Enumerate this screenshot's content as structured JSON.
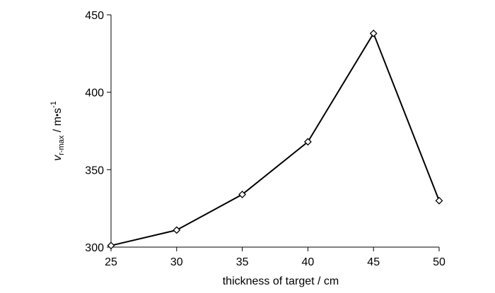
{
  "chart_data": {
    "type": "line",
    "title": "",
    "xlabel": "thickness of target / cm",
    "ylabel": {
      "symbol": "v",
      "subscript": "r-max",
      "unit_prefix": " / m",
      "dot": "•",
      "unit_s": "s",
      "exponent": "-1"
    },
    "x": [
      25,
      30,
      35,
      40,
      45,
      50
    ],
    "series": [
      {
        "values": [
          301,
          311,
          334,
          368,
          438,
          330
        ]
      }
    ],
    "xlim": [
      25,
      50
    ],
    "ylim": [
      300,
      450
    ],
    "xticks": [
      "25",
      "30",
      "35",
      "40",
      "45",
      "50"
    ],
    "yticks": [
      "300",
      "350",
      "400",
      "450"
    ],
    "marker": "diamond",
    "line_color": "#000000",
    "grid": false,
    "legend": "none"
  }
}
